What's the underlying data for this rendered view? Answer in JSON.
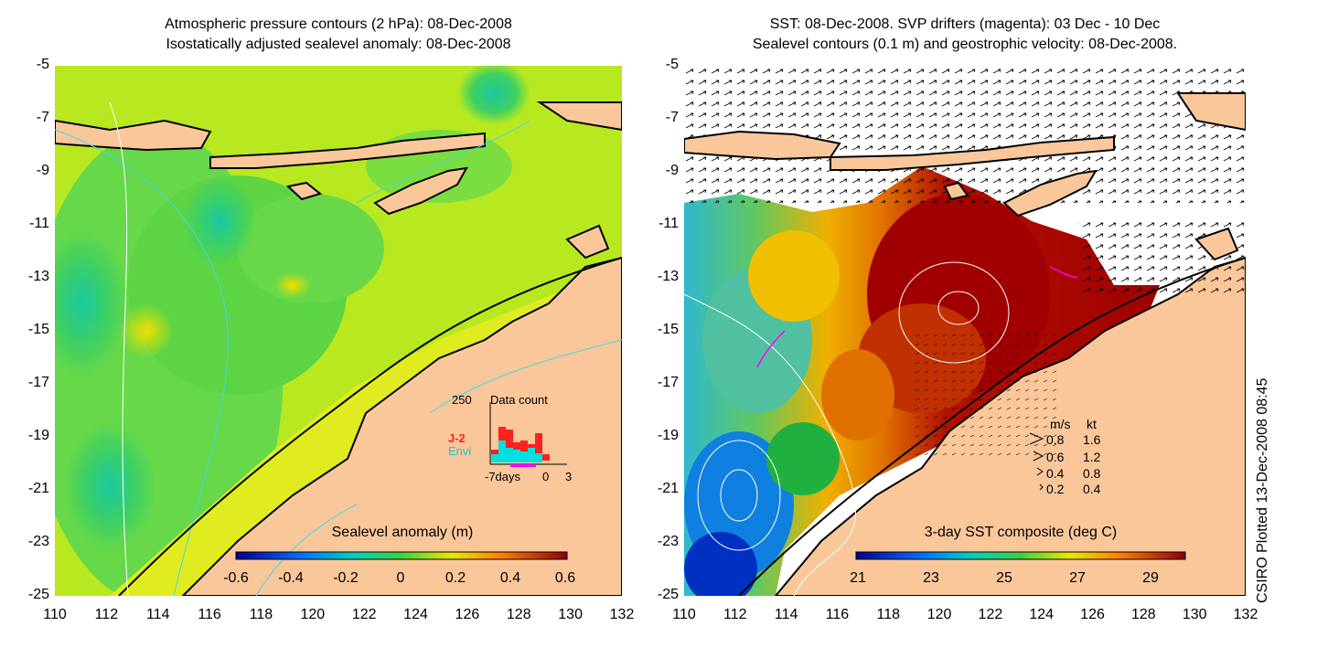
{
  "left_panel": {
    "title_line1": "Atmospheric pressure contours (2 hPa): 08-Dec-2008",
    "title_line2": "Isostatically adjusted sealevel anomaly: 08-Dec-2008",
    "colorbar": {
      "label": "Sealevel anomaly (m)",
      "ticks": [
        "-0.6",
        "-0.4",
        "-0.2",
        "0",
        "0.2",
        "0.4",
        "0.6"
      ]
    },
    "inset": {
      "count_label": "250",
      "title": "Data count",
      "x_label_start": "-7days",
      "x_label_zero": "0",
      "x_label_end": "3",
      "series": [
        {
          "name": "J-2",
          "color": "#ff0000"
        },
        {
          "name": "Envi",
          "color": "#00e0e0"
        }
      ]
    }
  },
  "right_panel": {
    "title_line1": "SST: 08-Dec-2008. SVP drifters (magenta): 03 Dec - 10 Dec",
    "title_line2": "Sealevel contours (0.1 m) and geostrophic velocity: 08-Dec-2008.",
    "colorbar": {
      "label": "3-day SST composite (deg C)",
      "ticks": [
        "21",
        "23",
        "25",
        "27",
        "29"
      ]
    },
    "legend": {
      "header_ms": "m/s",
      "header_kt": "kt",
      "rows": [
        {
          "ms": "0.8",
          "kt": "1.6"
        },
        {
          "ms": "0.6",
          "kt": "1.2"
        },
        {
          "ms": "0.4",
          "kt": "0.8"
        },
        {
          "ms": "0.2",
          "kt": "0.4"
        }
      ]
    }
  },
  "axes": {
    "y_ticks": [
      "-5",
      "-7",
      "-9",
      "-11",
      "-13",
      "-15",
      "-17",
      "-19",
      "-21",
      "-23",
      "-25"
    ],
    "x_ticks": [
      "110",
      "112",
      "114",
      "116",
      "118",
      "120",
      "122",
      "124",
      "126",
      "128",
      "130",
      "132"
    ]
  },
  "credit": "CSIRO Plotted 13-Dec-2008 08:45",
  "colors": {
    "land": "#f9c79a",
    "sla_low": "#00008f",
    "sla_mid": "#00d000",
    "sla_high": "#8f0000",
    "sst_low": "#00008f",
    "sst_high": "#a00000"
  }
}
